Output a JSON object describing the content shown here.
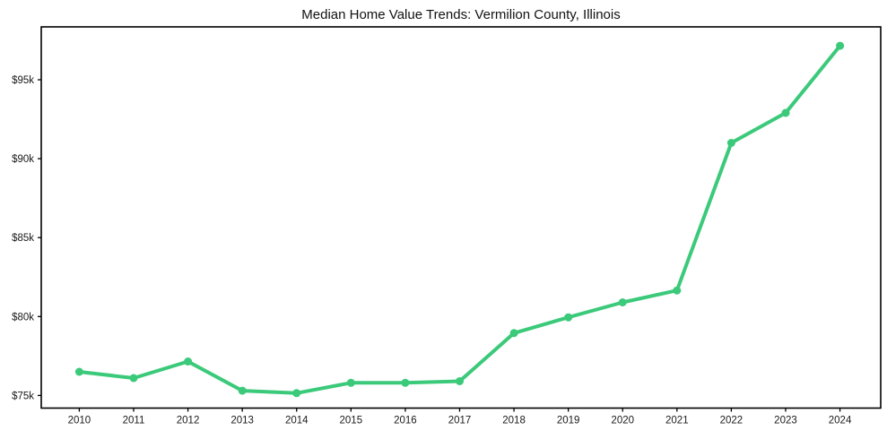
{
  "chart_data": {
    "type": "line",
    "title": "Median Home Value Trends: Vermilion County, Illinois",
    "xlabel": "",
    "ylabel": "",
    "x": [
      2010,
      2011,
      2012,
      2013,
      2014,
      2015,
      2016,
      2017,
      2018,
      2019,
      2020,
      2021,
      2022,
      2023,
      2024
    ],
    "x_tick_labels": [
      "2010",
      "2011",
      "2012",
      "2013",
      "2014",
      "2015",
      "2016",
      "2017",
      "2018",
      "2019",
      "2020",
      "2021",
      "2022",
      "2023",
      "2024"
    ],
    "series": [
      {
        "name": "Median Home Value",
        "values": [
          76500,
          76100,
          77150,
          75300,
          75150,
          75800,
          75800,
          75900,
          78950,
          79950,
          80900,
          81650,
          91000,
          92900,
          97150
        ]
      }
    ],
    "y_ticks": [
      {
        "value": 75000,
        "label": "$75k"
      },
      {
        "value": 80000,
        "label": "$80k"
      },
      {
        "value": 85000,
        "label": "$85k"
      },
      {
        "value": 90000,
        "label": "$90k"
      },
      {
        "value": 95000,
        "label": "$95k"
      }
    ],
    "xlim": [
      2009.3,
      2024.75
    ],
    "ylim": [
      74200,
      98350
    ],
    "grid": false,
    "legend": "none",
    "line_color": "#3bc97a",
    "marker": "circle",
    "marker_color": "#3bc97a",
    "axis_color": "#000000",
    "background_color": "#ffffff"
  }
}
